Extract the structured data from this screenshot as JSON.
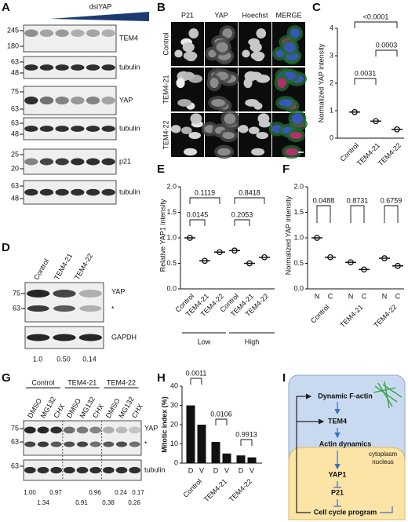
{
  "A": {
    "label": "A",
    "treatment": "dsiYAP",
    "blots": [
      {
        "name": "TEM4",
        "markers": [
          245,
          180
        ]
      },
      {
        "name": "tubulin",
        "markers": [
          63,
          48
        ]
      },
      {
        "name": "YAP",
        "markers": [
          75,
          63
        ]
      },
      {
        "name": "tubulin",
        "markers": [
          63,
          48
        ]
      },
      {
        "name": "p21",
        "markers": [
          25,
          20
        ]
      },
      {
        "name": "tubulin",
        "markers": [
          63,
          48
        ]
      }
    ]
  },
  "B": {
    "label": "B",
    "channels": [
      "P21",
      "YAP",
      "Hoechst",
      "MERGE"
    ],
    "rows": [
      "Control",
      "TEM4-21",
      "TEM4-22"
    ]
  },
  "C": {
    "label": "C",
    "type": "scatter",
    "y_label": "Normalized YAP intensity",
    "categories": [
      "Control",
      "TEM4-21",
      "TEM4-22"
    ],
    "means": [
      0.95,
      0.62,
      0.32
    ],
    "ylim": [
      0,
      4
    ],
    "yticks": [
      0,
      1,
      2,
      3,
      4
    ],
    "p_values": [
      "<0.0001",
      "0.0003",
      "0.0031"
    ]
  },
  "D": {
    "label": "D",
    "lanes": [
      "Control",
      "TEM4-21",
      "TEM4-22"
    ],
    "blots": [
      {
        "name": "YAP",
        "markers": [
          75,
          63
        ],
        "nonspecific": "*"
      },
      {
        "name": "GAPDH"
      }
    ],
    "quantification": [
      "1.0",
      "0.50",
      "0.14"
    ]
  },
  "E": {
    "label": "E",
    "type": "scatter",
    "y_label": "Relative YAP1 intensity",
    "categories": [
      "Control",
      "TEM4-21",
      "TEM4-22",
      "Control",
      "TEM4-21",
      "TEM4-22"
    ],
    "groups": [
      "Low",
      "High"
    ],
    "means": [
      1.0,
      0.55,
      0.72,
      0.75,
      0.5,
      0.62
    ],
    "ylim": [
      0,
      2
    ],
    "yticks": [
      {
        "value": 0,
        "label": "0.0"
      },
      0.5,
      {
        "value": 1,
        "label": "1.0"
      },
      1.5,
      {
        "value": 2,
        "label": "2.0"
      }
    ],
    "p_values": [
      "0.1119",
      "0.8418",
      "0.0145",
      "0.2053"
    ]
  },
  "F": {
    "label": "F",
    "type": "scatter",
    "y_label": "Normalized YAP intensity",
    "categories": [
      "N",
      "C",
      "N",
      "C",
      "N",
      "C"
    ],
    "groups": [
      "Control",
      "TEM4-21",
      "TEM4-22"
    ],
    "means": [
      1.0,
      0.62,
      0.52,
      0.38,
      0.6,
      0.45
    ],
    "ylim": [
      0,
      2
    ],
    "yticks": [
      {
        "value": 0,
        "label": "0.0"
      },
      0.5,
      {
        "value": 1,
        "label": "1.0"
      },
      1.5,
      {
        "value": 2,
        "label": "2.0"
      }
    ],
    "p_values": [
      "0.0488",
      "0.8731",
      "0.6759"
    ]
  },
  "G": {
    "label": "G",
    "groups": [
      "Control",
      "TEM4-21",
      "TEM4-22"
    ],
    "lanes": [
      "DMSO",
      "MG132",
      "CHX",
      "DMSO",
      "MG132",
      "CHX",
      "DMSO",
      "MG132",
      "CHX"
    ],
    "blots": [
      {
        "name": "YAP",
        "markers": [
          75,
          63
        ],
        "nonspecific": "*"
      },
      {
        "name": "tubulin",
        "markers": [
          63
        ]
      }
    ],
    "quantification_row1": [
      "1.00",
      "0.97",
      "0.96",
      "0.24",
      "0.17"
    ],
    "quantification_row2": [
      "1.34",
      "0.91",
      "0.38",
      "0.26"
    ]
  },
  "H": {
    "label": "H",
    "type": "bar",
    "y_label": "Mitotic index (%)",
    "categories": [
      "D",
      "V",
      "D",
      "V",
      "D",
      "V"
    ],
    "groups": [
      "Control",
      "TEM4-21",
      "TEM4-22"
    ],
    "values": [
      30,
      20,
      11,
      5,
      4,
      3
    ],
    "color": "#111111",
    "ylim": [
      0,
      40
    ],
    "yticks": [
      0,
      10,
      20,
      30,
      40
    ],
    "p_values": [
      "0.0011",
      "0.0106",
      "0.9913"
    ]
  },
  "I": {
    "label": "I",
    "nodes": [
      "Dynamic F-actin",
      "TEM4",
      "Actin dynamics",
      "YAP1",
      "P21",
      "Cell cycle program"
    ],
    "compartments": [
      "cytoplasm",
      "nucleus"
    ]
  }
}
